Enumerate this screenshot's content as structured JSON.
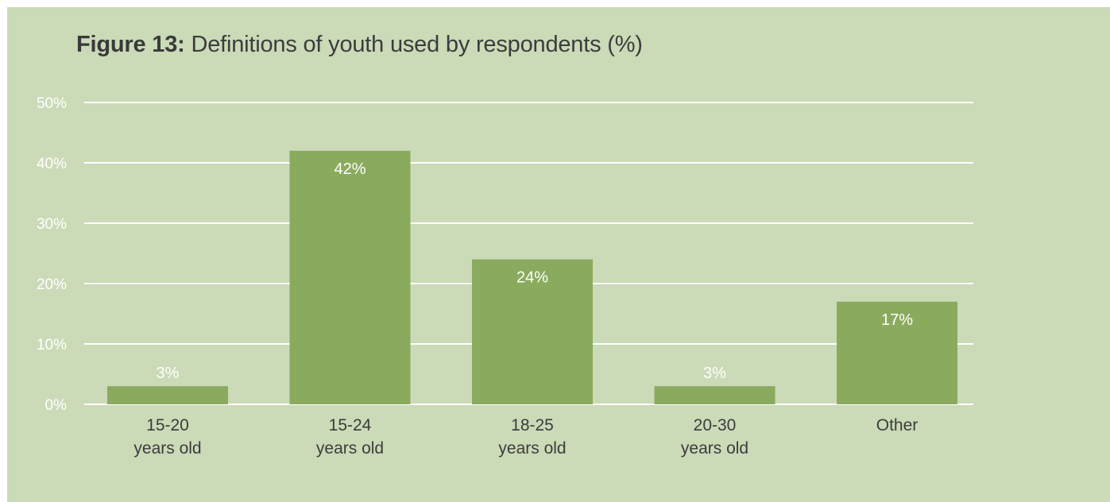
{
  "title": {
    "prefix": "Figure 13:",
    "text": " Definitions of youth used by respondents (%)"
  },
  "colors": {
    "panel_background": "#cbdab7",
    "bar": "#8aab5e",
    "gridline": "#ffffff",
    "data_label_inside": "#ffffff",
    "data_label_outside": "#ffffff",
    "category_text": "#3c3c3c"
  },
  "chart_data": {
    "type": "bar",
    "title": "Definitions of youth used by respondents (%)",
    "categories": [
      [
        "15-20",
        "years old"
      ],
      [
        "15-24",
        "years old"
      ],
      [
        "18-25",
        "years old"
      ],
      [
        "20-30",
        "years old"
      ],
      [
        "Other"
      ]
    ],
    "values": [
      3,
      42,
      24,
      3,
      17
    ],
    "value_labels": [
      "3%",
      "42%",
      "24%",
      "3%",
      "17%"
    ],
    "ylim": [
      0,
      50
    ],
    "y_ticks": [
      0,
      10,
      20,
      30,
      40,
      50
    ],
    "y_tick_labels": [
      "0%",
      "10%",
      "20%",
      "30%",
      "40%",
      "50%"
    ],
    "xlabel": "",
    "ylabel": "",
    "grid": true,
    "legend": "none"
  }
}
